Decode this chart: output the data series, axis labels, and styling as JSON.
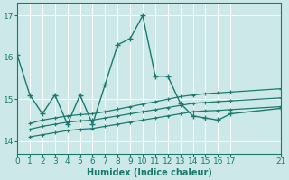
{
  "xlabel": "Humidex (Indice chaleur)",
  "background_color": "#cce8e8",
  "grid_color": "#ffffff",
  "line_color": "#1a7a6e",
  "xlim": [
    0,
    21
  ],
  "ylim": [
    13.7,
    17.3
  ],
  "yticks": [
    14,
    15,
    16,
    17
  ],
  "xticks": [
    0,
    1,
    2,
    3,
    4,
    5,
    6,
    7,
    8,
    9,
    10,
    11,
    12,
    13,
    14,
    15,
    16,
    17,
    21
  ],
  "main_x": [
    0,
    1,
    2,
    3,
    4,
    5,
    6,
    7,
    8,
    9,
    10,
    11,
    12,
    13,
    14,
    15,
    16,
    17,
    21
  ],
  "main_y": [
    16.05,
    15.1,
    14.65,
    15.1,
    14.4,
    15.1,
    14.4,
    15.35,
    16.3,
    16.45,
    17.0,
    15.55,
    15.55,
    14.9,
    14.6,
    14.55,
    14.5,
    14.65,
    14.78
  ],
  "line1_x": [
    1,
    2,
    3,
    4,
    5,
    6,
    7,
    8,
    9,
    10,
    11,
    12,
    13,
    14,
    15,
    16,
    17,
    21
  ],
  "line1_y": [
    14.1,
    14.15,
    14.2,
    14.25,
    14.28,
    14.3,
    14.35,
    14.4,
    14.45,
    14.5,
    14.55,
    14.6,
    14.65,
    14.7,
    14.72,
    14.73,
    14.75,
    14.82
  ],
  "line2_x": [
    1,
    2,
    3,
    4,
    5,
    6,
    7,
    8,
    9,
    10,
    11,
    12,
    13,
    14,
    15,
    16,
    17,
    21
  ],
  "line2_y": [
    14.28,
    14.35,
    14.4,
    14.45,
    14.48,
    14.5,
    14.55,
    14.6,
    14.65,
    14.7,
    14.75,
    14.8,
    14.85,
    14.9,
    14.92,
    14.94,
    14.96,
    15.03
  ],
  "line3_x": [
    1,
    2,
    3,
    4,
    5,
    6,
    7,
    8,
    9,
    10,
    11,
    12,
    13,
    14,
    15,
    16,
    17,
    21
  ],
  "line3_y": [
    14.42,
    14.5,
    14.55,
    14.6,
    14.63,
    14.65,
    14.7,
    14.76,
    14.82,
    14.88,
    14.94,
    15.0,
    15.06,
    15.1,
    15.13,
    15.15,
    15.17,
    15.25
  ]
}
